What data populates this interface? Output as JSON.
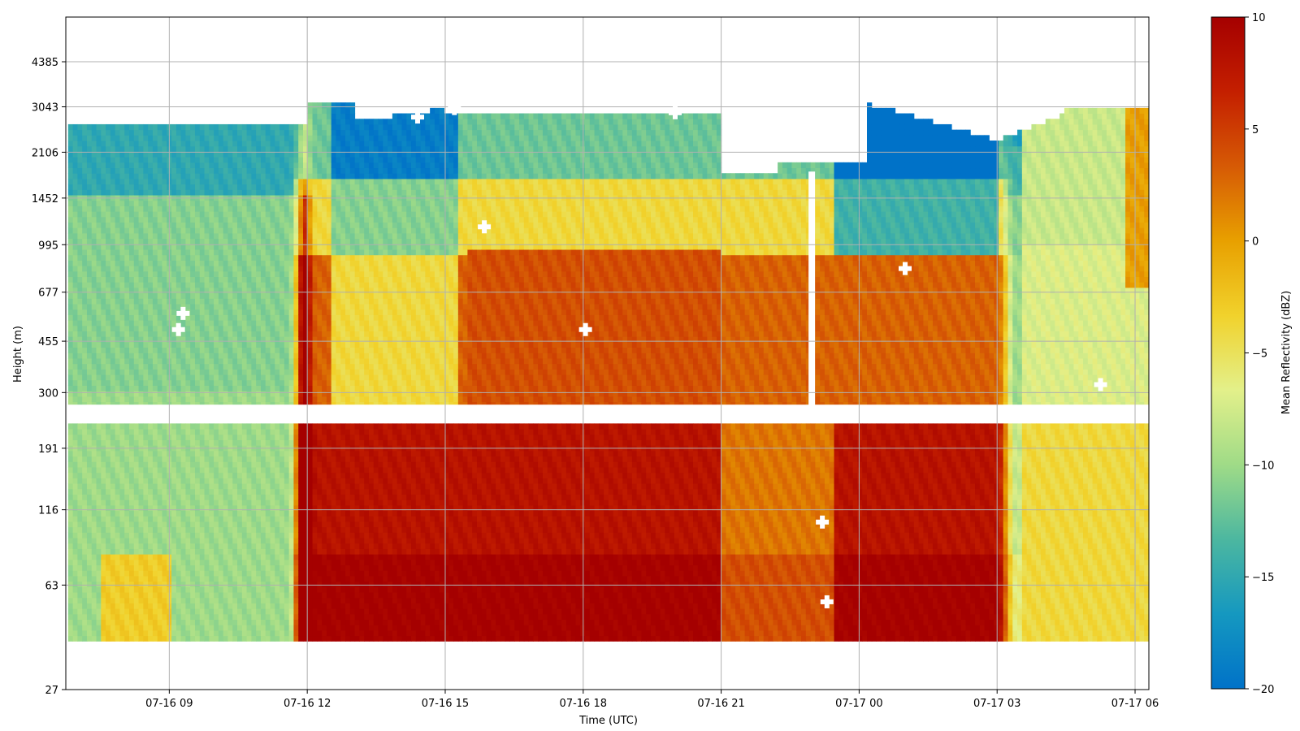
{
  "chart_data": {
    "type": "heatmap",
    "xlabel": "Time (UTC)",
    "ylabel": "Height (m)",
    "colorbar_label": "Mean Reflectivity (dBZ)",
    "x_ticks": [
      "07-16 09",
      "07-16 12",
      "07-16 15",
      "07-16 18",
      "07-16 21",
      "07-17 00",
      "07-17 03",
      "07-17 06"
    ],
    "y_ticks": [
      "27",
      "63",
      "116",
      "191",
      "300",
      "455",
      "677",
      "995",
      "1452",
      "2106",
      "3043",
      "4385"
    ],
    "colorbar_ticks": [
      "10",
      "5",
      "0",
      "−5",
      "−10",
      "−15",
      "−20"
    ],
    "x_range_hours_utc": [
      6.75,
      30.3
    ],
    "y_range_log_height_m": [
      27,
      6300
    ],
    "color_range_dbz": [
      -20,
      10
    ],
    "grid": true,
    "colormap_stops": [
      "#0072c8",
      "#1598c0",
      "#4cb7a0",
      "#9fdb87",
      "#e3f08a",
      "#f1d22c",
      "#e8a000",
      "#d65a05",
      "#c41f00",
      "#a50000"
    ],
    "gaps": {
      "height_band_m": [
        236,
        272
      ],
      "time_gap_1_utc": "07-16 21:30",
      "time_gap_2_utc": "07-16 22:50"
    },
    "markers": [
      {
        "time_h": 9.3,
        "height_m": 570
      },
      {
        "time_h": 9.2,
        "height_m": 500
      },
      {
        "time_h": 14.4,
        "height_m": 2800
      },
      {
        "time_h": 15.2,
        "height_m": 3000
      },
      {
        "time_h": 15.85,
        "height_m": 1150
      },
      {
        "time_h": 18.05,
        "height_m": 500
      },
      {
        "time_h": 20.0,
        "height_m": 2900
      },
      {
        "time_h": 23.2,
        "height_m": 105
      },
      {
        "time_h": 23.3,
        "height_m": 55
      },
      {
        "time_h": 25.0,
        "height_m": 820
      },
      {
        "time_h": 29.25,
        "height_m": 320
      }
    ]
  }
}
